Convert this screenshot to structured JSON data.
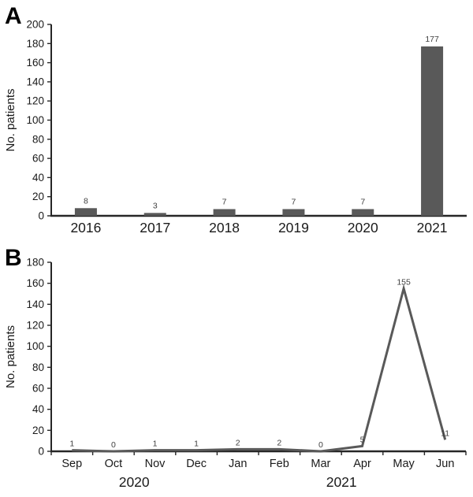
{
  "figure": {
    "panel_a_letter": "A",
    "panel_b_letter": "B"
  },
  "colors": {
    "bar": "#595959",
    "line": "#595959",
    "axis": "#262626",
    "data_label": "#404040",
    "tick_label": "#1a1a1a"
  },
  "chart_data": [
    {
      "type": "bar",
      "panel": "A",
      "title": "",
      "xlabel": "",
      "ylabel": "No. patients",
      "categories": [
        "2016",
        "2017",
        "2018",
        "2019",
        "2020",
        "2021"
      ],
      "values": [
        8,
        3,
        7,
        7,
        7,
        177
      ],
      "data_labels": [
        "8",
        "3",
        "7",
        "7",
        "7",
        "177"
      ],
      "ylim": [
        0,
        200
      ],
      "ytick_step": 20,
      "grid": false,
      "legend": "none"
    },
    {
      "type": "line",
      "panel": "B",
      "title": "",
      "xlabel": "",
      "ylabel": "No. patients",
      "categories": [
        "Sep",
        "Oct",
        "Nov",
        "Dec",
        "Jan",
        "Feb",
        "Mar",
        "Apr",
        "May",
        "Jun"
      ],
      "values": [
        1,
        0,
        1,
        1,
        2,
        2,
        0,
        5,
        155,
        11
      ],
      "data_labels": [
        "1",
        "0",
        "1",
        "1",
        "2",
        "2",
        "0",
        "5",
        "155",
        "11"
      ],
      "year_groups": [
        {
          "label": "2020",
          "start": 0,
          "end": 3
        },
        {
          "label": "2021",
          "start": 4,
          "end": 9
        }
      ],
      "ylim": [
        0,
        180
      ],
      "ytick_step": 20,
      "grid": false,
      "legend": "none"
    }
  ]
}
